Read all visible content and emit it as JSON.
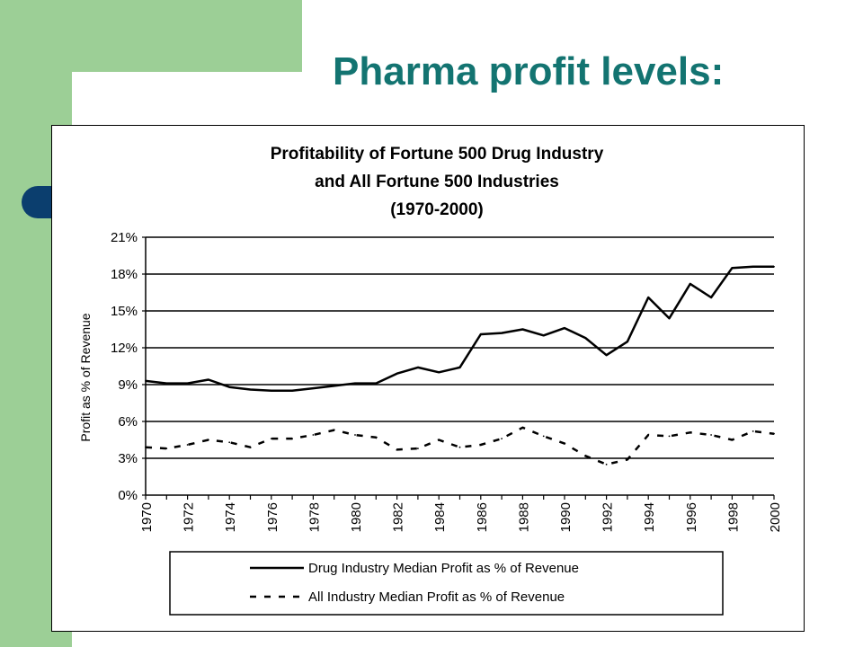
{
  "slide": {
    "title": "Pharma profit levels:"
  },
  "colors": {
    "slide_title": "#137471",
    "sidebar_green": "#9ccf96",
    "tab_blue": "#0b3e6e",
    "series_lines": "#000000"
  },
  "chart_data": {
    "type": "line",
    "title_lines": [
      "Profitability of Fortune 500 Drug Industry",
      "and All Fortune 500 Industries",
      "(1970-2000)"
    ],
    "ylabel": "Profit as % of Revenue",
    "xlabel": "",
    "ylim": [
      0,
      21
    ],
    "yticks": [
      "0%",
      "3%",
      "6%",
      "9%",
      "12%",
      "15%",
      "18%",
      "21%"
    ],
    "grid": "horizontal",
    "x_tick_labels": [
      "1970",
      "1972",
      "1974",
      "1976",
      "1978",
      "1980",
      "1982",
      "1984",
      "1986",
      "1988",
      "1990",
      "1992",
      "1994",
      "1996",
      "1998",
      "2000"
    ],
    "x": [
      1970,
      1971,
      1972,
      1973,
      1974,
      1975,
      1976,
      1977,
      1978,
      1979,
      1980,
      1981,
      1982,
      1983,
      1984,
      1985,
      1986,
      1987,
      1988,
      1989,
      1990,
      1991,
      1992,
      1993,
      1994,
      1995,
      1996,
      1997,
      1998,
      1999,
      2000
    ],
    "legend_position": "bottom",
    "series": [
      {
        "name": "Drug Industry Median Profit as % of Revenue",
        "style": "solid",
        "values": [
          9.3,
          9.1,
          9.1,
          9.4,
          8.8,
          8.6,
          8.5,
          8.5,
          8.7,
          8.9,
          9.1,
          9.1,
          9.9,
          10.4,
          10.0,
          10.4,
          13.1,
          13.2,
          13.5,
          13.0,
          13.6,
          12.8,
          11.4,
          12.5,
          16.1,
          14.4,
          17.2,
          16.1,
          18.5,
          18.6,
          18.6
        ]
      },
      {
        "name": "All Industry Median Profit as % of Revenue",
        "style": "dashed",
        "values": [
          3.9,
          3.8,
          4.1,
          4.5,
          4.3,
          3.9,
          4.6,
          4.6,
          4.9,
          5.3,
          4.9,
          4.7,
          3.7,
          3.8,
          4.5,
          3.9,
          4.1,
          4.6,
          5.5,
          4.8,
          4.2,
          3.2,
          2.5,
          2.9,
          4.9,
          4.8,
          5.1,
          4.9,
          4.5,
          5.2,
          5.0
        ]
      }
    ]
  }
}
